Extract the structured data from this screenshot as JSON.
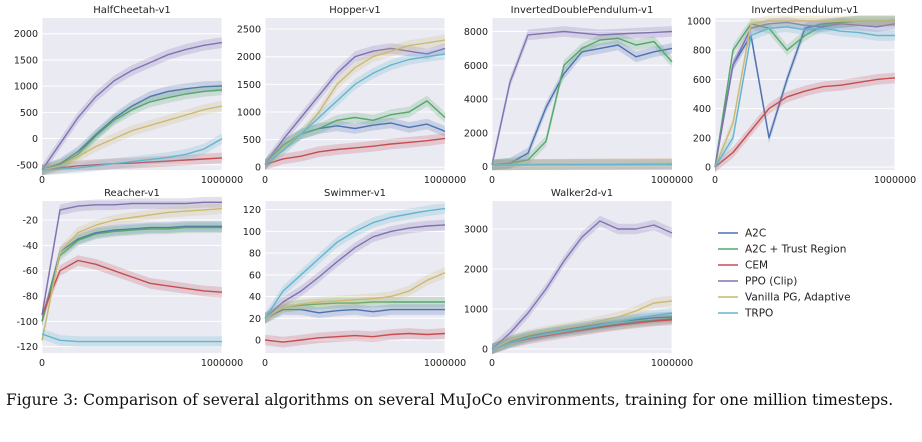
{
  "caption": "Figure 3:  Comparison of several algorithms on several MuJoCo environments, training for one million timesteps.",
  "colors": {
    "plot_bg": "#eaeaf2",
    "grid": "#ffffff"
  },
  "legend": [
    {
      "name": "A2C",
      "color": "#4c72b0"
    },
    {
      "name": "A2C + Trust Region",
      "color": "#55a868"
    },
    {
      "name": "CEM",
      "color": "#c44e52"
    },
    {
      "name": "PPO (Clip)",
      "color": "#8172b2"
    },
    {
      "name": "Vanilla PG, Adaptive",
      "color": "#ccb974"
    },
    {
      "name": "TRPO",
      "color": "#64b5cd"
    }
  ],
  "chart_data": [
    {
      "type": "line",
      "title": "HalfCheetah-v1",
      "xlim": [
        0,
        1000000
      ],
      "ylim": [
        -600,
        2300
      ],
      "xticks": [
        0,
        1000000
      ],
      "yticks": [
        -500,
        0,
        500,
        1000,
        1500,
        2000
      ],
      "x": [
        0,
        100000,
        200000,
        300000,
        400000,
        500000,
        600000,
        700000,
        800000,
        900000,
        1000000
      ],
      "series": [
        {
          "name": "A2C",
          "values": [
            -600,
            -480,
            -250,
            80,
            380,
            620,
            800,
            900,
            950,
            990,
            1000
          ]
        },
        {
          "name": "A2C + Trust Region",
          "values": [
            -600,
            -500,
            -300,
            50,
            350,
            550,
            700,
            780,
            850,
            900,
            930
          ]
        },
        {
          "name": "CEM",
          "values": [
            -600,
            -560,
            -520,
            -500,
            -480,
            -470,
            -450,
            -430,
            -410,
            -390,
            -370
          ]
        },
        {
          "name": "PPO (Clip)",
          "values": [
            -600,
            -100,
            400,
            800,
            1100,
            1300,
            1450,
            1600,
            1700,
            1780,
            1830
          ]
        },
        {
          "name": "Vanilla PG, Adaptive",
          "values": [
            -600,
            -520,
            -350,
            -150,
            0,
            150,
            250,
            350,
            450,
            550,
            620
          ]
        },
        {
          "name": "TRPO",
          "values": [
            -600,
            -580,
            -560,
            -520,
            -480,
            -440,
            -400,
            -360,
            -300,
            -200,
            0
          ]
        }
      ]
    },
    {
      "type": "line",
      "title": "Hopper-v1",
      "xlim": [
        0,
        1000000
      ],
      "ylim": [
        -50,
        2700
      ],
      "xticks": [
        0,
        1000000
      ],
      "yticks": [
        0,
        500,
        1000,
        1500,
        2000,
        2500
      ],
      "x": [
        0,
        100000,
        200000,
        300000,
        400000,
        500000,
        600000,
        700000,
        800000,
        900000,
        1000000
      ],
      "series": [
        {
          "name": "A2C",
          "values": [
            50,
            400,
            600,
            700,
            750,
            700,
            760,
            800,
            720,
            780,
            650
          ]
        },
        {
          "name": "A2C + Trust Region",
          "values": [
            50,
            400,
            600,
            700,
            850,
            900,
            850,
            950,
            1000,
            1200,
            900
          ]
        },
        {
          "name": "CEM",
          "values": [
            50,
            150,
            200,
            280,
            320,
            350,
            380,
            420,
            450,
            480,
            520
          ]
        },
        {
          "name": "PPO (Clip)",
          "values": [
            50,
            500,
            900,
            1300,
            1700,
            2000,
            2100,
            2150,
            2100,
            2050,
            2150
          ]
        },
        {
          "name": "Vanilla PG, Adaptive",
          "values": [
            50,
            350,
            600,
            1000,
            1500,
            1800,
            2000,
            2100,
            2200,
            2250,
            2300
          ]
        },
        {
          "name": "TRPO",
          "values": [
            50,
            300,
            600,
            900,
            1200,
            1500,
            1700,
            1850,
            1950,
            2000,
            2050
          ]
        }
      ]
    },
    {
      "type": "line",
      "title": "InvertedDoublePendulum-v1",
      "xlim": [
        0,
        1000000
      ],
      "ylim": [
        -200,
        8800
      ],
      "xticks": [
        0,
        1000000
      ],
      "yticks": [
        0,
        2000,
        4000,
        6000,
        8000
      ],
      "x": [
        0,
        100000,
        200000,
        300000,
        400000,
        500000,
        600000,
        700000,
        800000,
        900000,
        1000000
      ],
      "series": [
        {
          "name": "A2C",
          "values": [
            100,
            200,
            800,
            3500,
            5500,
            6800,
            7000,
            7200,
            6500,
            6800,
            7000
          ]
        },
        {
          "name": "A2C + Trust Region",
          "values": [
            100,
            200,
            400,
            1500,
            6000,
            7000,
            7500,
            7600,
            7200,
            7400,
            6200
          ]
        },
        {
          "name": "CEM",
          "values": [
            100,
            110,
            120,
            130,
            135,
            140,
            140,
            145,
            145,
            150,
            150
          ]
        },
        {
          "name": "PPO (Clip)",
          "values": [
            100,
            5000,
            7800,
            7900,
            8000,
            7900,
            7800,
            7850,
            7900,
            7950,
            8000
          ]
        },
        {
          "name": "Vanilla PG, Adaptive",
          "values": [
            100,
            110,
            120,
            130,
            140,
            150,
            160,
            170,
            180,
            190,
            200
          ]
        },
        {
          "name": "TRPO",
          "values": [
            100,
            100,
            110,
            110,
            110,
            115,
            115,
            115,
            120,
            120,
            120
          ]
        }
      ]
    },
    {
      "type": "line",
      "title": "InvertedPendulum-v1",
      "xlim": [
        0,
        1000000
      ],
      "ylim": [
        -20,
        1020
      ],
      "xticks": [
        0,
        1000000
      ],
      "yticks": [
        0,
        200,
        400,
        600,
        800,
        1000
      ],
      "x": [
        0,
        100000,
        200000,
        300000,
        400000,
        500000,
        600000,
        700000,
        800000,
        900000,
        1000000
      ],
      "series": [
        {
          "name": "A2C",
          "values": [
            0,
            700,
            900,
            200,
            600,
            950,
            980,
            990,
            1000,
            1000,
            1000
          ]
        },
        {
          "name": "A2C + Trust Region",
          "values": [
            0,
            800,
            980,
            950,
            800,
            900,
            970,
            990,
            1000,
            1000,
            1000
          ]
        },
        {
          "name": "CEM",
          "values": [
            0,
            100,
            250,
            400,
            480,
            520,
            550,
            560,
            580,
            600,
            610
          ]
        },
        {
          "name": "PPO (Clip)",
          "values": [
            0,
            700,
            950,
            980,
            990,
            970,
            960,
            980,
            970,
            960,
            980
          ]
        },
        {
          "name": "Vanilla PG, Adaptive",
          "values": [
            0,
            300,
            980,
            1000,
            1000,
            1000,
            1000,
            1000,
            1000,
            1000,
            1000
          ]
        },
        {
          "name": "TRPO",
          "values": [
            0,
            200,
            900,
            950,
            960,
            940,
            950,
            930,
            920,
            900,
            900
          ]
        }
      ]
    },
    {
      "type": "line",
      "title": "Reacher-v1",
      "xlim": [
        0,
        1000000
      ],
      "ylim": [
        -125,
        -5
      ],
      "xticks": [
        0,
        1000000
      ],
      "yticks": [
        -120,
        -100,
        -80,
        -60,
        -40,
        -20
      ],
      "x": [
        0,
        100000,
        200000,
        300000,
        400000,
        500000,
        600000,
        700000,
        800000,
        900000,
        1000000
      ],
      "series": [
        {
          "name": "A2C",
          "values": [
            -100,
            -45,
            -35,
            -30,
            -28,
            -27,
            -26,
            -26,
            -25,
            -25,
            -25
          ]
        },
        {
          "name": "A2C + Trust Region",
          "values": [
            -100,
            -48,
            -36,
            -31,
            -29,
            -28,
            -27,
            -27,
            -26,
            -26,
            -26
          ]
        },
        {
          "name": "CEM",
          "values": [
            -95,
            -60,
            -52,
            -55,
            -60,
            -65,
            -70,
            -72,
            -74,
            -76,
            -77
          ]
        },
        {
          "name": "PPO (Clip)",
          "values": [
            -95,
            -12,
            -9,
            -8,
            -8,
            -7,
            -7,
            -7,
            -7,
            -6,
            -6
          ]
        },
        {
          "name": "Vanilla PG, Adaptive",
          "values": [
            -115,
            -45,
            -30,
            -24,
            -20,
            -18,
            -16,
            -14,
            -13,
            -12,
            -11
          ]
        },
        {
          "name": "TRPO",
          "values": [
            -110,
            -115,
            -116,
            -116,
            -116,
            -116,
            -116,
            -116,
            -116,
            -116,
            -116
          ]
        }
      ]
    },
    {
      "type": "line",
      "title": "Swimmer-v1",
      "xlim": [
        0,
        1000000
      ],
      "ylim": [
        -12,
        128
      ],
      "xticks": [
        0,
        1000000
      ],
      "yticks": [
        0,
        20,
        40,
        60,
        80,
        100,
        120
      ],
      "x": [
        0,
        100000,
        200000,
        300000,
        400000,
        500000,
        600000,
        700000,
        800000,
        900000,
        1000000
      ],
      "series": [
        {
          "name": "A2C",
          "values": [
            20,
            28,
            28,
            25,
            27,
            28,
            26,
            28,
            28,
            28,
            28
          ]
        },
        {
          "name": "A2C + Trust Region",
          "values": [
            20,
            30,
            32,
            33,
            34,
            34,
            35,
            35,
            35,
            35,
            35
          ]
        },
        {
          "name": "CEM",
          "values": [
            0,
            -2,
            0,
            2,
            3,
            4,
            3,
            5,
            6,
            5,
            6
          ]
        },
        {
          "name": "PPO (Clip)",
          "values": [
            20,
            35,
            45,
            58,
            72,
            85,
            95,
            100,
            103,
            105,
            106
          ]
        },
        {
          "name": "Vanilla PG, Adaptive",
          "values": [
            20,
            30,
            33,
            35,
            36,
            37,
            38,
            40,
            45,
            55,
            62
          ]
        },
        {
          "name": "TRPO",
          "values": [
            20,
            45,
            60,
            75,
            90,
            100,
            108,
            113,
            116,
            119,
            121
          ]
        }
      ]
    },
    {
      "type": "line",
      "title": "Walker2d-v1",
      "xlim": [
        0,
        1000000
      ],
      "ylim": [
        -100,
        3700
      ],
      "xticks": [
        0,
        1000000
      ],
      "yticks": [
        0,
        1000,
        2000,
        3000
      ],
      "x": [
        0,
        100000,
        200000,
        300000,
        400000,
        500000,
        600000,
        700000,
        800000,
        900000,
        1000000
      ],
      "series": [
        {
          "name": "A2C",
          "values": [
            0,
            200,
            320,
            400,
            480,
            550,
            620,
            680,
            730,
            780,
            800
          ]
        },
        {
          "name": "A2C + Trust Region",
          "values": [
            0,
            180,
            300,
            380,
            450,
            500,
            560,
            620,
            680,
            720,
            760
          ]
        },
        {
          "name": "CEM",
          "values": [
            0,
            150,
            250,
            330,
            400,
            470,
            540,
            600,
            650,
            700,
            730
          ]
        },
        {
          "name": "PPO (Clip)",
          "values": [
            0,
            400,
            900,
            1500,
            2200,
            2800,
            3200,
            3000,
            3000,
            3100,
            2900
          ]
        },
        {
          "name": "Vanilla PG, Adaptive",
          "values": [
            0,
            220,
            350,
            450,
            520,
            600,
            700,
            800,
            950,
            1150,
            1200
          ]
        },
        {
          "name": "TRPO",
          "values": [
            0,
            150,
            280,
            380,
            450,
            520,
            600,
            680,
            760,
            840,
            900
          ]
        }
      ]
    }
  ]
}
